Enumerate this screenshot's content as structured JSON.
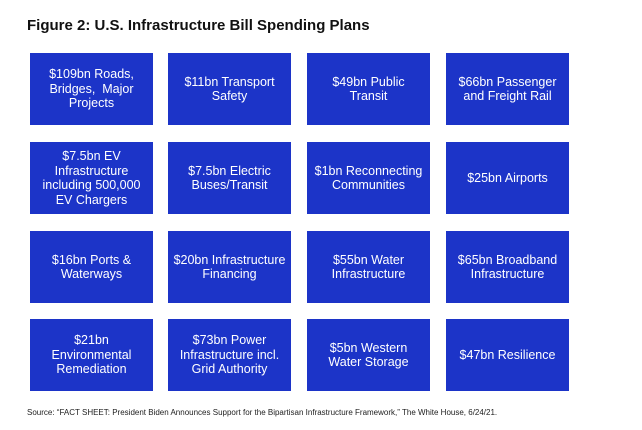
{
  "title": "Figure 2: U.S. Infrastructure Bill Spending Plans",
  "tiles": [
    {
      "lines": [
        "$109bn Roads,",
        "Bridges,  Major",
        "Projects"
      ]
    },
    {
      "lines": [
        "$11bn Transport",
        "Safety"
      ]
    },
    {
      "lines": [
        "$49bn Public",
        "Transit"
      ]
    },
    {
      "lines": [
        "$66bn Passenger",
        "and Freight Rail"
      ]
    },
    {
      "lines": [
        "$7.5bn EV",
        "Infrastructure",
        "including 500,000",
        "EV Chargers"
      ]
    },
    {
      "lines": [
        "$7.5bn Electric",
        "Buses/Transit"
      ]
    },
    {
      "lines": [
        "$1bn Reconnecting",
        "Communities"
      ]
    },
    {
      "lines": [
        "$25bn Airports"
      ]
    },
    {
      "lines": [
        "$16bn Ports &",
        "Waterways"
      ]
    },
    {
      "lines": [
        "$20bn Infrastructure",
        "Financing"
      ]
    },
    {
      "lines": [
        "$55bn Water",
        "Infrastructure"
      ]
    },
    {
      "lines": [
        "$65bn Broadband",
        "Infrastructure"
      ]
    },
    {
      "lines": [
        "$21bn",
        "Environmental",
        "Remediation"
      ]
    },
    {
      "lines": [
        "$73bn Power",
        "Infrastructure incl.",
        "Grid Authority"
      ]
    },
    {
      "lines": [
        "$5bn Western",
        "Water Storage"
      ]
    },
    {
      "lines": [
        "$47bn Resilience"
      ]
    }
  ],
  "source": "Source: “FACT SHEET: President Biden Announces Support for the Bipartisan Infrastructure Framework,” The White House, 6/24/21."
}
